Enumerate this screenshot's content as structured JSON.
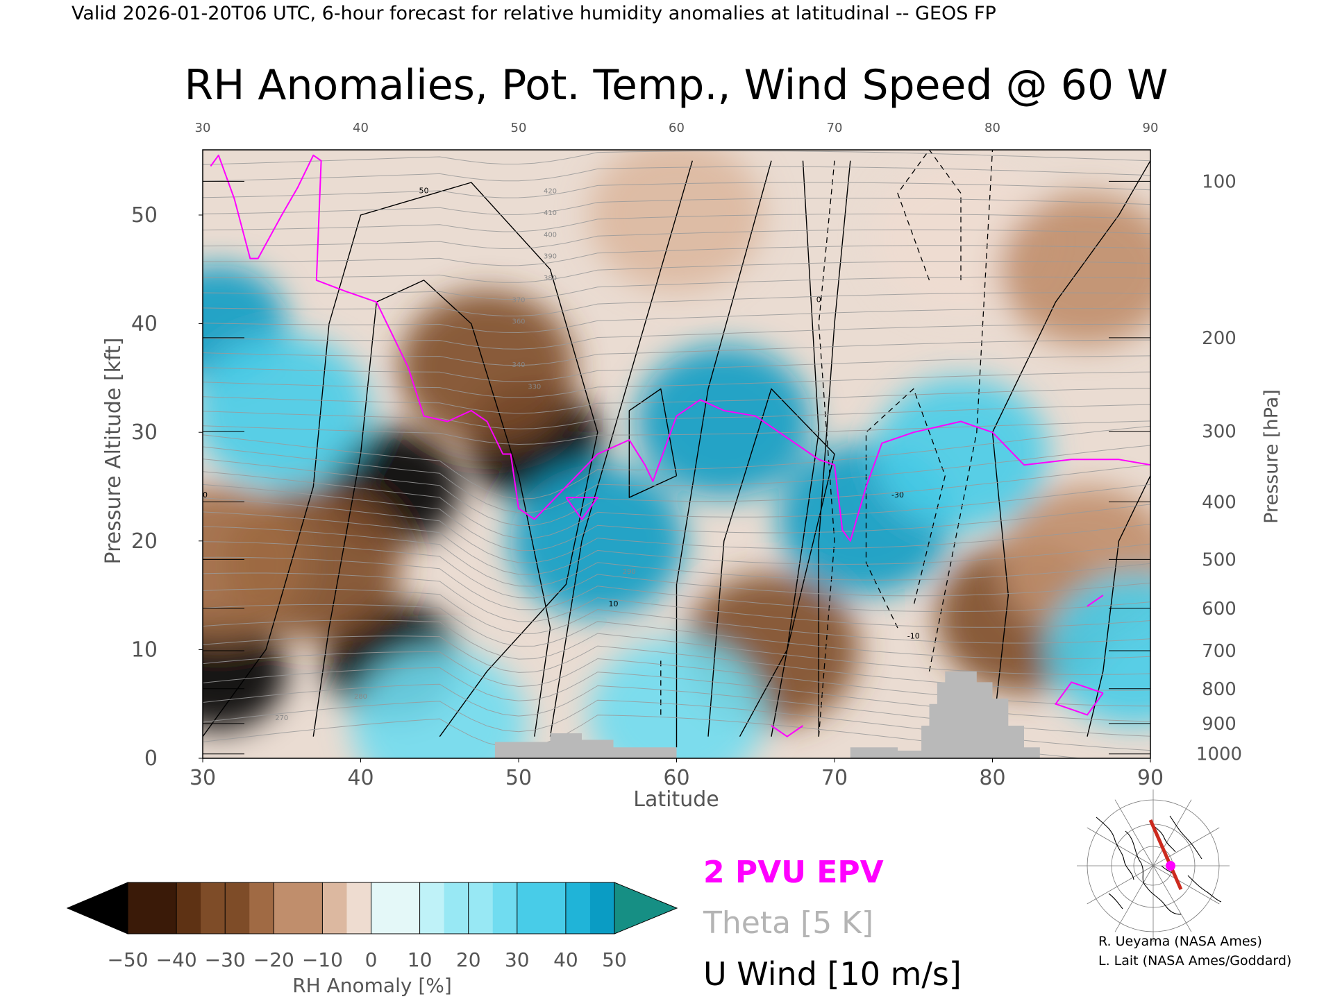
{
  "header": {
    "valid_line": "Valid 2026-01-20T06 UTC, 6-hour forecast for relative humidity anomalies at latitudinal -- GEOS FP",
    "title": "RH Anomalies, Pot. Temp., Wind Speed @ 60 W"
  },
  "chart_data": {
    "type": "heatmap",
    "title": "RH Anomalies, Pot. Temp., Wind Speed @ 60 W",
    "xlabel": "Latitude",
    "ylabel": "Pressure Altitude [kft]",
    "ylabel_right": "Pressure [hPa]",
    "xlim": [
      30,
      90
    ],
    "ylim": [
      0,
      56
    ],
    "x_ticks": [
      30,
      40,
      50,
      60,
      70,
      80,
      90
    ],
    "y_ticks": [
      0,
      10,
      20,
      30,
      40,
      50
    ],
    "pressure_levels": [
      {
        "hPa": 100,
        "kft": 53.1
      },
      {
        "hPa": 200,
        "kft": 38.7
      },
      {
        "hPa": 300,
        "kft": 30.1
      },
      {
        "hPa": 400,
        "kft": 23.6
      },
      {
        "hPa": 500,
        "kft": 18.3
      },
      {
        "hPa": 600,
        "kft": 13.8
      },
      {
        "hPa": 700,
        "kft": 9.9
      },
      {
        "hPa": 800,
        "kft": 6.4
      },
      {
        "hPa": 900,
        "kft": 3.2
      },
      {
        "hPa": 1000,
        "kft": 0.4
      }
    ],
    "pressure_labels": [
      "100",
      "200",
      "300",
      "400",
      "500",
      "600",
      "700",
      "800",
      "900",
      "1000"
    ],
    "colorbar": {
      "label": "RH Anomaly [%]",
      "tick_labels": [
        "−50",
        "−40",
        "−30",
        "−20",
        "−10",
        "0",
        "10",
        "20",
        "30",
        "40",
        "50"
      ],
      "colors": [
        "#000000",
        "#3a1a08",
        "#5e3214",
        "#7e4c28",
        "#a06a44",
        "#c08e6c",
        "#dcb8a0",
        "#eedcd0",
        "#e4f8f8",
        "#bff2f8",
        "#98e8f4",
        "#70dcf0",
        "#48cce8",
        "#20b4d8",
        "#0a9cc4",
        "#168f84"
      ]
    },
    "legend": [
      {
        "label": "2 PVU EPV",
        "color": "#ff00ff"
      },
      {
        "label": "Theta [5 K]",
        "color": "#b4b4b4"
      },
      {
        "label": "U Wind [10 m/s]",
        "color": "#000000"
      }
    ],
    "theta_labels": [
      "270",
      "280",
      "290",
      "330",
      "340",
      "360",
      "370",
      "380",
      "390",
      "400",
      "410",
      "420"
    ],
    "wind_labels": [
      "-30",
      "-10",
      "0",
      "10",
      "30",
      "50"
    ],
    "rh_anomaly_field": [
      {
        "lat": 31,
        "kft": 8,
        "value": -50
      },
      {
        "lat": 42,
        "kft": 9,
        "value": -50
      },
      {
        "lat": 42,
        "kft": 25,
        "value": -50
      },
      {
        "lat": 51,
        "kft": 29,
        "value": -50
      },
      {
        "lat": 48,
        "kft": 36,
        "value": -30
      },
      {
        "lat": 37,
        "kft": 18,
        "value": -30
      },
      {
        "lat": 31,
        "kft": 18,
        "value": -25
      },
      {
        "lat": 66,
        "kft": 10,
        "value": -30
      },
      {
        "lat": 82,
        "kft": 13,
        "value": -30
      },
      {
        "lat": 86,
        "kft": 18,
        "value": -20
      },
      {
        "lat": 60,
        "kft": 50,
        "value": -10
      },
      {
        "lat": 78,
        "kft": 48,
        "value": -5
      },
      {
        "lat": 86,
        "kft": 45,
        "value": -15
      },
      {
        "lat": 31,
        "kft": 40,
        "value": 45
      },
      {
        "lat": 35,
        "kft": 32,
        "value": 30
      },
      {
        "lat": 55,
        "kft": 20,
        "value": 40
      },
      {
        "lat": 63,
        "kft": 31,
        "value": 40
      },
      {
        "lat": 72,
        "kft": 22,
        "value": 40
      },
      {
        "lat": 78,
        "kft": 28,
        "value": 30
      },
      {
        "lat": 89,
        "kft": 10,
        "value": 30
      },
      {
        "lat": 45,
        "kft": 3,
        "value": 20
      },
      {
        "lat": 60,
        "kft": 4,
        "value": 20
      }
    ],
    "epv_2pvu_contour": [
      [
        30.5,
        54.5
      ],
      [
        31,
        55.5
      ],
      [
        32,
        51.5
      ],
      [
        33,
        46
      ],
      [
        33.5,
        46
      ],
      [
        35,
        50
      ],
      [
        36,
        52.5
      ],
      [
        37,
        55.5
      ],
      [
        37.5,
        55
      ],
      [
        37.2,
        44
      ],
      [
        39,
        43
      ],
      [
        41,
        42
      ],
      [
        43,
        36
      ],
      [
        44,
        31.5
      ],
      [
        45.5,
        31
      ],
      [
        47,
        32
      ],
      [
        48,
        31
      ],
      [
        49,
        28
      ],
      [
        49.5,
        28
      ],
      [
        50,
        23
      ],
      [
        51,
        22
      ],
      [
        53,
        25
      ],
      [
        55,
        28
      ],
      [
        57,
        29.3
      ],
      [
        58,
        27
      ],
      [
        58.5,
        25.5
      ],
      [
        60,
        31.5
      ],
      [
        61.5,
        33
      ],
      [
        63,
        32
      ],
      [
        65,
        31.5
      ],
      [
        67,
        29.5
      ],
      [
        69,
        27.5
      ],
      [
        70,
        27
      ],
      [
        70.5,
        21
      ],
      [
        71,
        20
      ],
      [
        72,
        25
      ],
      [
        73,
        29
      ],
      [
        75,
        30
      ],
      [
        78,
        31
      ],
      [
        80,
        30
      ],
      [
        82,
        27
      ],
      [
        85,
        27.5
      ],
      [
        88,
        27.5
      ],
      [
        90,
        27
      ]
    ],
    "topography_kft": [
      [
        48.5,
        0
      ],
      [
        48.5,
        1.5
      ],
      [
        52,
        1.5
      ],
      [
        52,
        2.3
      ],
      [
        54,
        2.3
      ],
      [
        54,
        1.7
      ],
      [
        56,
        1.7
      ],
      [
        56,
        1
      ],
      [
        60,
        1
      ],
      [
        60,
        0
      ],
      [
        71,
        0
      ],
      [
        71,
        1
      ],
      [
        74,
        1
      ],
      [
        74,
        0.7
      ],
      [
        75.5,
        0.7
      ],
      [
        75.5,
        3
      ],
      [
        76,
        3
      ],
      [
        76,
        5
      ],
      [
        76.5,
        5
      ],
      [
        76.5,
        7
      ],
      [
        77,
        7
      ],
      [
        77,
        8
      ],
      [
        79,
        8
      ],
      [
        79,
        7
      ],
      [
        80,
        7
      ],
      [
        80,
        5.5
      ],
      [
        81,
        5.5
      ],
      [
        81,
        3
      ],
      [
        82,
        3
      ],
      [
        82,
        1
      ],
      [
        83,
        1
      ],
      [
        83,
        0
      ]
    ]
  },
  "credits": {
    "line1": "R. Ueyama (NASA Ames)",
    "line2": "L. Lait (NASA Ames/Goddard)"
  },
  "inset_map": {
    "projection": "north-polar-stereographic",
    "track_color": "#cc2a1e",
    "marker_color": "#ff00ff"
  }
}
